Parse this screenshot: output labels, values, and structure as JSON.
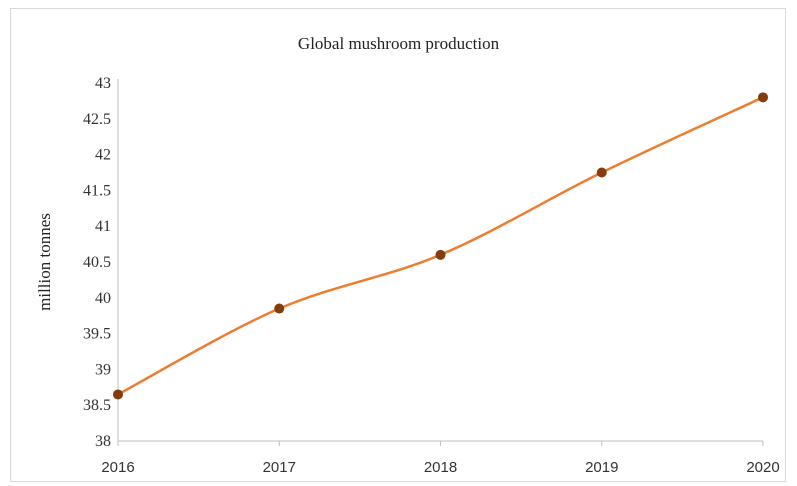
{
  "chart_data": {
    "type": "line",
    "title": "Global mushroom production",
    "xlabel": "",
    "ylabel": "million tonnes",
    "categories": [
      "2016",
      "2017",
      "2018",
      "2019",
      "2020"
    ],
    "series": [
      {
        "values": [
          38.65,
          39.85,
          40.6,
          41.75,
          42.8
        ]
      }
    ],
    "ylim": [
      38,
      43
    ],
    "yticks": [
      38,
      38.5,
      39,
      39.5,
      40,
      40.5,
      41,
      41.5,
      42,
      42.5,
      43
    ],
    "grid": false,
    "line_style": "smooth",
    "colors": {
      "line": "#ED7D31",
      "marker": "#843C0C",
      "axis": "#bfbfbf"
    }
  }
}
